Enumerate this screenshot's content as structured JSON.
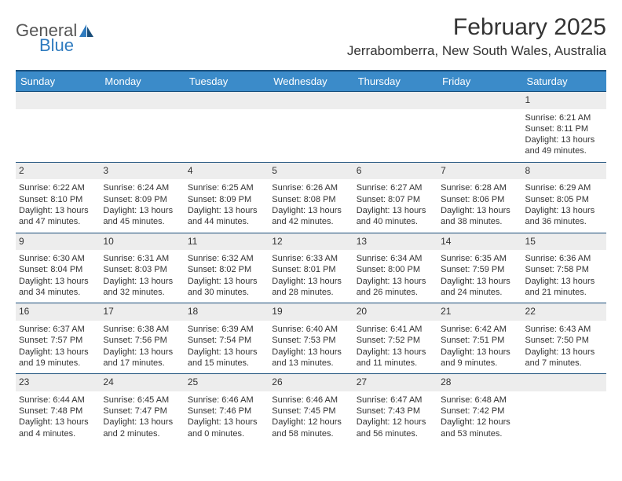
{
  "logo": {
    "general": "General",
    "blue": "Blue"
  },
  "title": "February 2025",
  "location": "Jerrabomberra, New South Wales, Australia",
  "colors": {
    "header_bg": "#3b8bc9",
    "rule": "#1a4e7a",
    "daynum_bg": "#ededed",
    "text": "#333333",
    "logo_gray": "#555555",
    "logo_blue": "#2f7bbf"
  },
  "weekdays": [
    "Sunday",
    "Monday",
    "Tuesday",
    "Wednesday",
    "Thursday",
    "Friday",
    "Saturday"
  ],
  "weeks": [
    {
      "nums": [
        "",
        "",
        "",
        "",
        "",
        "",
        "1"
      ],
      "cells": [
        [],
        [],
        [],
        [],
        [],
        [],
        [
          "Sunrise: 6:21 AM",
          "Sunset: 8:11 PM",
          "Daylight: 13 hours and 49 minutes."
        ]
      ]
    },
    {
      "nums": [
        "2",
        "3",
        "4",
        "5",
        "6",
        "7",
        "8"
      ],
      "cells": [
        [
          "Sunrise: 6:22 AM",
          "Sunset: 8:10 PM",
          "Daylight: 13 hours and 47 minutes."
        ],
        [
          "Sunrise: 6:24 AM",
          "Sunset: 8:09 PM",
          "Daylight: 13 hours and 45 minutes."
        ],
        [
          "Sunrise: 6:25 AM",
          "Sunset: 8:09 PM",
          "Daylight: 13 hours and 44 minutes."
        ],
        [
          "Sunrise: 6:26 AM",
          "Sunset: 8:08 PM",
          "Daylight: 13 hours and 42 minutes."
        ],
        [
          "Sunrise: 6:27 AM",
          "Sunset: 8:07 PM",
          "Daylight: 13 hours and 40 minutes."
        ],
        [
          "Sunrise: 6:28 AM",
          "Sunset: 8:06 PM",
          "Daylight: 13 hours and 38 minutes."
        ],
        [
          "Sunrise: 6:29 AM",
          "Sunset: 8:05 PM",
          "Daylight: 13 hours and 36 minutes."
        ]
      ]
    },
    {
      "nums": [
        "9",
        "10",
        "11",
        "12",
        "13",
        "14",
        "15"
      ],
      "cells": [
        [
          "Sunrise: 6:30 AM",
          "Sunset: 8:04 PM",
          "Daylight: 13 hours and 34 minutes."
        ],
        [
          "Sunrise: 6:31 AM",
          "Sunset: 8:03 PM",
          "Daylight: 13 hours and 32 minutes."
        ],
        [
          "Sunrise: 6:32 AM",
          "Sunset: 8:02 PM",
          "Daylight: 13 hours and 30 minutes."
        ],
        [
          "Sunrise: 6:33 AM",
          "Sunset: 8:01 PM",
          "Daylight: 13 hours and 28 minutes."
        ],
        [
          "Sunrise: 6:34 AM",
          "Sunset: 8:00 PM",
          "Daylight: 13 hours and 26 minutes."
        ],
        [
          "Sunrise: 6:35 AM",
          "Sunset: 7:59 PM",
          "Daylight: 13 hours and 24 minutes."
        ],
        [
          "Sunrise: 6:36 AM",
          "Sunset: 7:58 PM",
          "Daylight: 13 hours and 21 minutes."
        ]
      ]
    },
    {
      "nums": [
        "16",
        "17",
        "18",
        "19",
        "20",
        "21",
        "22"
      ],
      "cells": [
        [
          "Sunrise: 6:37 AM",
          "Sunset: 7:57 PM",
          "Daylight: 13 hours and 19 minutes."
        ],
        [
          "Sunrise: 6:38 AM",
          "Sunset: 7:56 PM",
          "Daylight: 13 hours and 17 minutes."
        ],
        [
          "Sunrise: 6:39 AM",
          "Sunset: 7:54 PM",
          "Daylight: 13 hours and 15 minutes."
        ],
        [
          "Sunrise: 6:40 AM",
          "Sunset: 7:53 PM",
          "Daylight: 13 hours and 13 minutes."
        ],
        [
          "Sunrise: 6:41 AM",
          "Sunset: 7:52 PM",
          "Daylight: 13 hours and 11 minutes."
        ],
        [
          "Sunrise: 6:42 AM",
          "Sunset: 7:51 PM",
          "Daylight: 13 hours and 9 minutes."
        ],
        [
          "Sunrise: 6:43 AM",
          "Sunset: 7:50 PM",
          "Daylight: 13 hours and 7 minutes."
        ]
      ]
    },
    {
      "nums": [
        "23",
        "24",
        "25",
        "26",
        "27",
        "28",
        ""
      ],
      "cells": [
        [
          "Sunrise: 6:44 AM",
          "Sunset: 7:48 PM",
          "Daylight: 13 hours and 4 minutes."
        ],
        [
          "Sunrise: 6:45 AM",
          "Sunset: 7:47 PM",
          "Daylight: 13 hours and 2 minutes."
        ],
        [
          "Sunrise: 6:46 AM",
          "Sunset: 7:46 PM",
          "Daylight: 13 hours and 0 minutes."
        ],
        [
          "Sunrise: 6:46 AM",
          "Sunset: 7:45 PM",
          "Daylight: 12 hours and 58 minutes."
        ],
        [
          "Sunrise: 6:47 AM",
          "Sunset: 7:43 PM",
          "Daylight: 12 hours and 56 minutes."
        ],
        [
          "Sunrise: 6:48 AM",
          "Sunset: 7:42 PM",
          "Daylight: 12 hours and 53 minutes."
        ],
        []
      ]
    }
  ]
}
